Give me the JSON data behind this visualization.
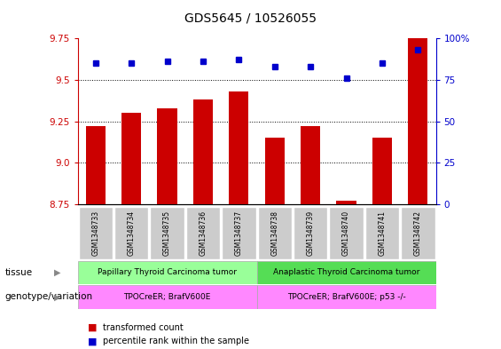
{
  "title": "GDS5645 / 10526055",
  "samples": [
    "GSM1348733",
    "GSM1348734",
    "GSM1348735",
    "GSM1348736",
    "GSM1348737",
    "GSM1348738",
    "GSM1348739",
    "GSM1348740",
    "GSM1348741",
    "GSM1348742"
  ],
  "bar_values": [
    9.22,
    9.3,
    9.33,
    9.38,
    9.43,
    9.15,
    9.22,
    8.77,
    9.15,
    9.75
  ],
  "dot_values": [
    85,
    85,
    86,
    86,
    87,
    83,
    83,
    76,
    85,
    93
  ],
  "bar_color": "#cc0000",
  "dot_color": "#0000cc",
  "ylim_left": [
    8.75,
    9.75
  ],
  "ylim_right": [
    0,
    100
  ],
  "yticks_left": [
    8.75,
    9.0,
    9.25,
    9.5,
    9.75
  ],
  "yticks_right": [
    0,
    25,
    50,
    75,
    100
  ],
  "grid_lines": [
    9.0,
    9.25,
    9.5
  ],
  "tissue_labels": [
    "Papillary Thyroid Carcinoma tumor",
    "Anaplastic Thyroid Carcinoma tumor"
  ],
  "tissue_colors": [
    "#99ff99",
    "#55dd55"
  ],
  "tissue_split": 5,
  "genotype_labels": [
    "TPOCreER; BrafV600E",
    "TPOCreER; BrafV600E; p53 -/-"
  ],
  "genotype_color": "#ff88ff",
  "tissue_row_label": "tissue",
  "genotype_row_label": "genotype/variation",
  "legend_bar_label": "transformed count",
  "legend_dot_label": "percentile rank within the sample",
  "bar_width": 0.55,
  "background_color": "#ffffff",
  "sample_bg_color": "#cccccc"
}
